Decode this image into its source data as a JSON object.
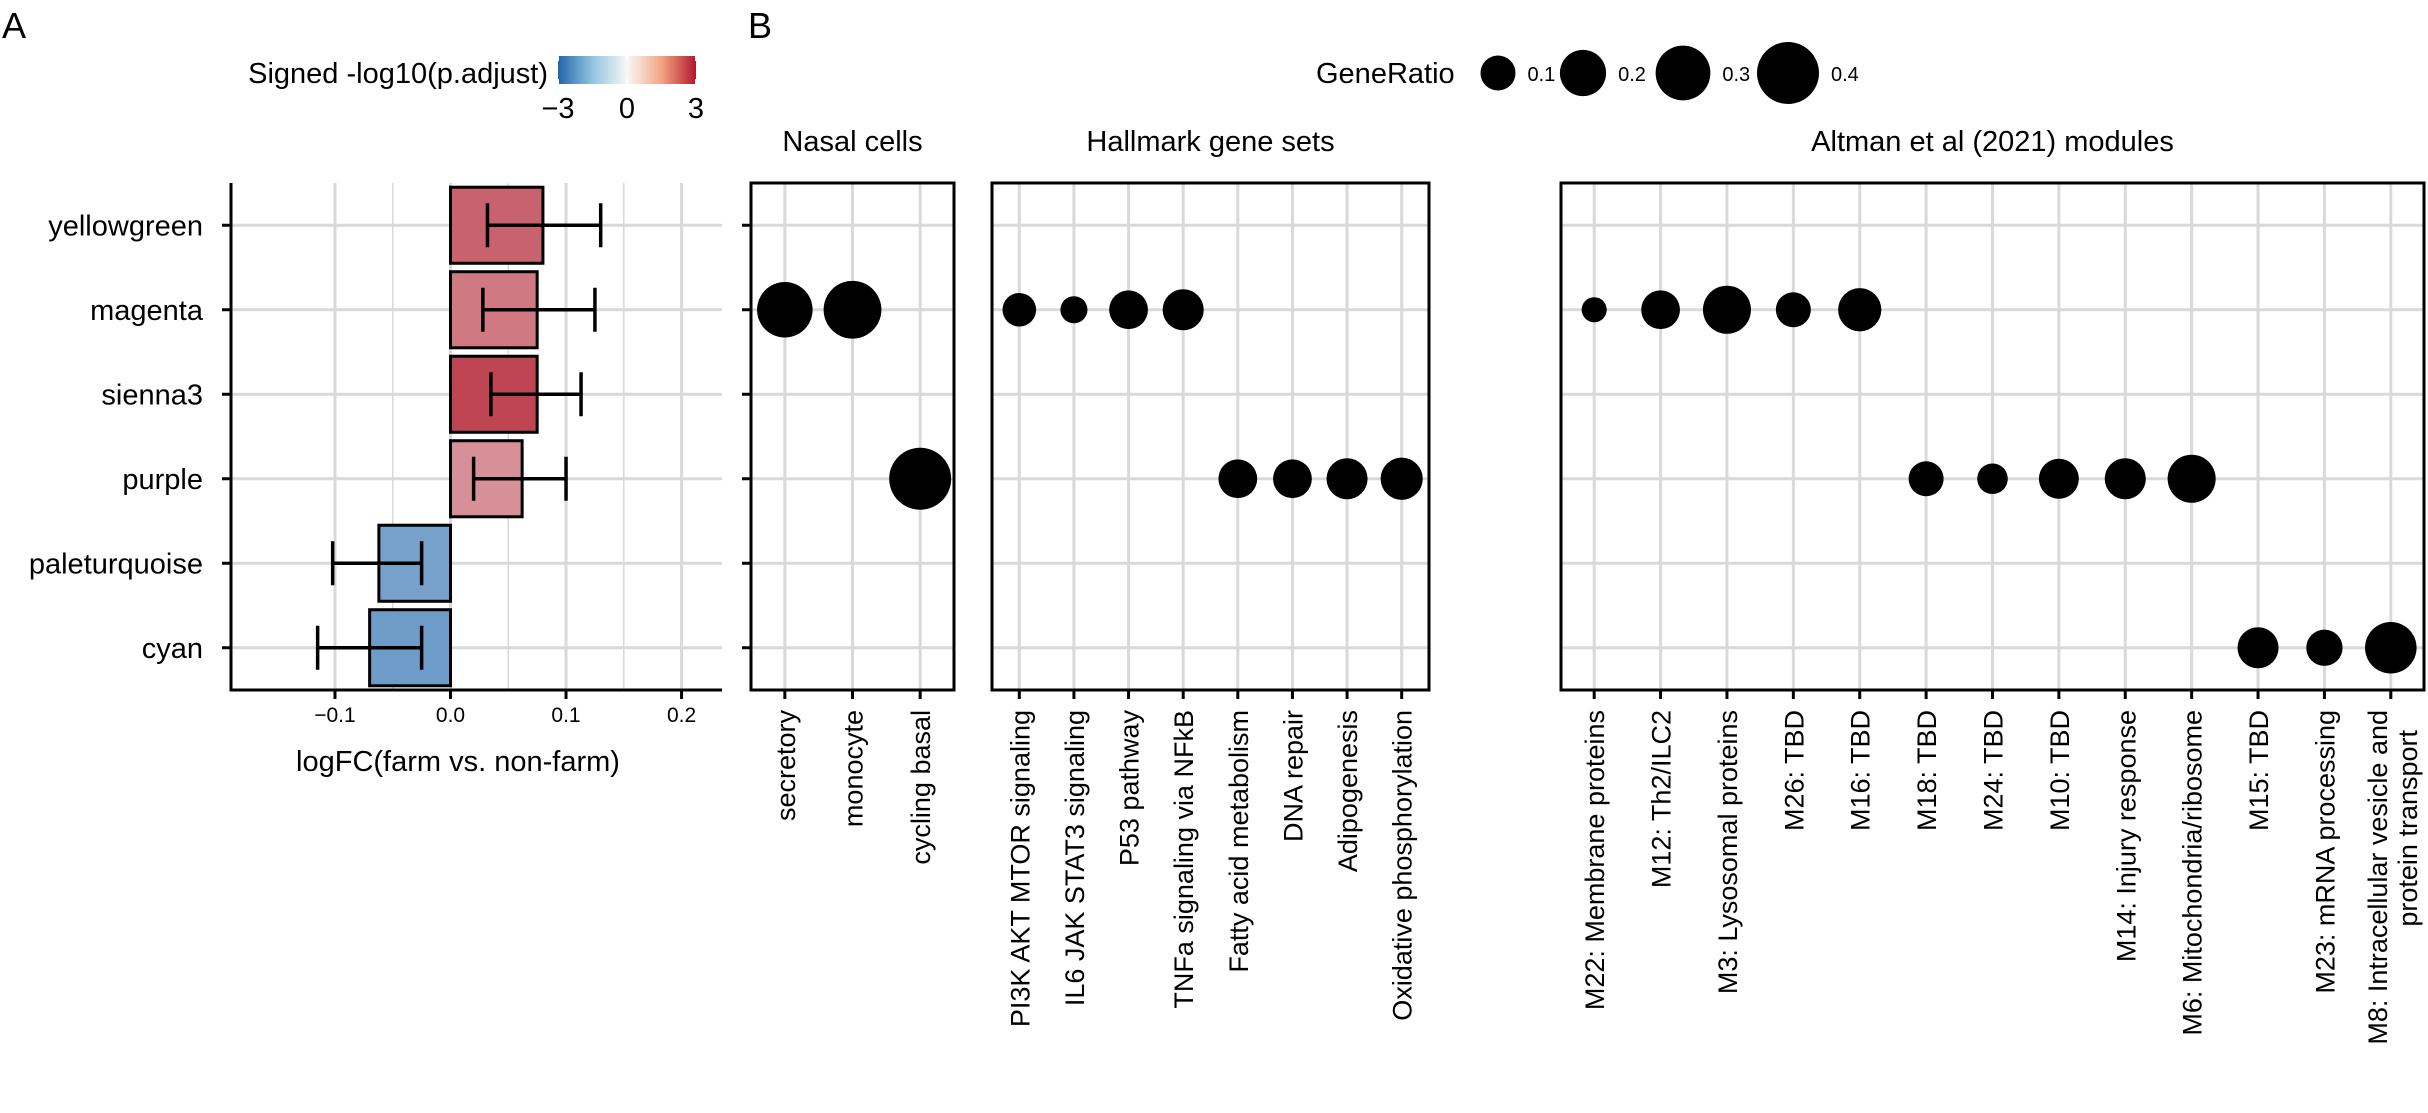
{
  "panel_labels": [
    "A",
    "B"
  ],
  "colors": {
    "negative": "#2166ac",
    "neutral": "#f7f7f7",
    "positive": "#b2182b",
    "grid": "#d9d9d9"
  },
  "chart_data": [
    {
      "type": "bar",
      "orientation": "horizontal",
      "panel": "A",
      "categories": [
        "yellowgreen",
        "magenta",
        "sienna3",
        "purple",
        "paleturquoise",
        "cyan"
      ],
      "values": [
        0.08,
        0.075,
        0.075,
        0.062,
        -0.062,
        -0.07
      ],
      "error_low": [
        0.032,
        0.028,
        0.035,
        0.02,
        -0.102,
        -0.115
      ],
      "error_high": [
        0.13,
        0.125,
        0.113,
        0.1,
        -0.025,
        -0.025
      ],
      "color_values": [
        2.0,
        1.7,
        2.4,
        1.4,
        -1.8,
        -1.9
      ],
      "xlabel": "logFC(farm vs. non-farm)",
      "xlim": [
        -0.19,
        0.235
      ],
      "xticks": [
        -0.1,
        0.0,
        0.1,
        0.2
      ],
      "xtick_labels": [
        "−0.1",
        "0.0",
        "0.1",
        "0.2"
      ],
      "grid": true,
      "legend": {
        "title": "Signed -log10(p.adjust)",
        "range": [
          -3,
          3
        ],
        "ticks": [
          -3,
          0,
          3
        ],
        "tick_labels": [
          "−3",
          "0",
          "3"
        ],
        "placement": "top"
      }
    },
    {
      "type": "scatter",
      "subtype": "dot-plot",
      "panel": "B",
      "rows": [
        "yellowgreen",
        "magenta",
        "sienna3",
        "purple",
        "paleturquoise",
        "cyan"
      ],
      "size_legend": {
        "title": "GeneRatio",
        "values": [
          0.1,
          0.2,
          0.3,
          0.4
        ],
        "labels": [
          "0.1",
          "0.2",
          "0.3",
          "0.4"
        ],
        "placement": "top"
      },
      "facets": [
        {
          "title": "Nasal cells",
          "categories": [
            "secretory",
            "monocyte",
            "cycling basal"
          ],
          "points": [
            {
              "category": "secretory",
              "row": "magenta",
              "size": 0.31
            },
            {
              "category": "monocyte",
              "row": "magenta",
              "size": 0.34
            },
            {
              "category": "cycling basal",
              "row": "purple",
              "size": 0.4
            }
          ]
        },
        {
          "title": "Hallmark gene sets",
          "categories": [
            "PI3K AKT MTOR signaling",
            "IL6 JAK STAT3 signaling",
            "P53 pathway",
            "TNFa signaling via NFkB",
            "Fatty acid metabolism",
            "DNA repair",
            "Adipogenesis",
            "Oxidative phosphorylation"
          ],
          "points": [
            {
              "category": "PI3K AKT MTOR signaling",
              "row": "magenta",
              "size": 0.09
            },
            {
              "category": "IL6 JAK STAT3 signaling",
              "row": "magenta",
              "size": 0.05
            },
            {
              "category": "P53 pathway",
              "row": "magenta",
              "size": 0.13
            },
            {
              "category": "TNFa signaling via NFkB",
              "row": "magenta",
              "size": 0.15
            },
            {
              "category": "Fatty acid metabolism",
              "row": "purple",
              "size": 0.13
            },
            {
              "category": "DNA repair",
              "row": "purple",
              "size": 0.13
            },
            {
              "category": "Adipogenesis",
              "row": "purple",
              "size": 0.15
            },
            {
              "category": "Oxidative phosphorylation",
              "row": "purple",
              "size": 0.16
            }
          ]
        },
        {
          "title": "Altman et al (2021) modules",
          "categories": [
            "M22: Membrane proteins",
            "M12: Th2/ILC2",
            "M3: Lysosomal proteins",
            "M26: TBD",
            "M16: TBD",
            "M18: TBD",
            "M24: TBD",
            "M10: TBD",
            "M14: Injury response",
            "M6: Mitochondria/ribosome",
            "M15: TBD",
            "M23: mRNA processing",
            "M8: Intracellular vesicle and protein transport"
          ],
          "points": [
            {
              "category": "M22: Membrane proteins",
              "row": "magenta",
              "size": 0.04
            },
            {
              "category": "M12: Th2/ILC2",
              "row": "magenta",
              "size": 0.13
            },
            {
              "category": "M3: Lysosomal proteins",
              "row": "magenta",
              "size": 0.22
            },
            {
              "category": "M26: TBD",
              "row": "magenta",
              "size": 0.1
            },
            {
              "category": "M16: TBD",
              "row": "magenta",
              "size": 0.17
            },
            {
              "category": "M18: TBD",
              "row": "purple",
              "size": 0.1
            },
            {
              "category": "M24: TBD",
              "row": "purple",
              "size": 0.07
            },
            {
              "category": "M10: TBD",
              "row": "purple",
              "size": 0.14
            },
            {
              "category": "M14: Injury response",
              "row": "purple",
              "size": 0.15
            },
            {
              "category": "M6: Mitochondria/ribosome",
              "row": "purple",
              "size": 0.22
            },
            {
              "category": "M15: TBD",
              "row": "cyan",
              "size": 0.15
            },
            {
              "category": "M23: mRNA processing",
              "row": "cyan",
              "size": 0.11
            },
            {
              "category": "M8: Intracellular vesicle and protein transport",
              "row": "cyan",
              "size": 0.26
            }
          ]
        }
      ]
    }
  ]
}
